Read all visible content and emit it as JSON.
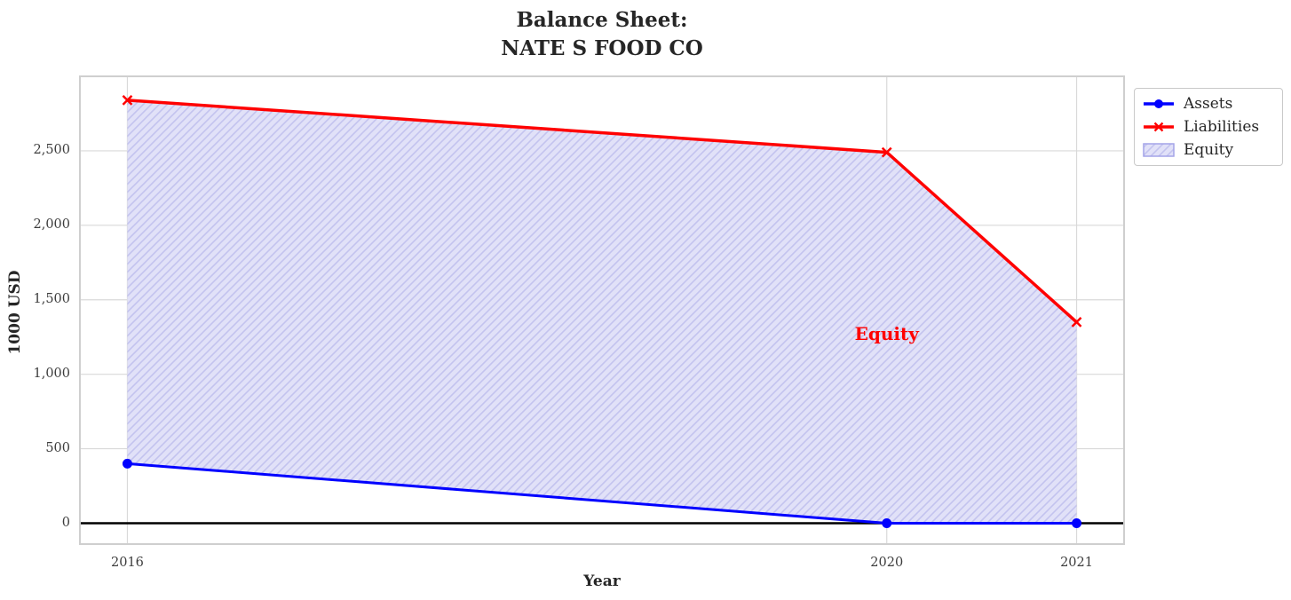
{
  "figure": {
    "title_line1": "Balance Sheet:",
    "title_line2": "NATE S FOOD CO"
  },
  "chart_data": {
    "type": "line",
    "title": "Balance Sheet:\nNATE S FOOD CO",
    "xlabel": "Year",
    "ylabel": "1000 USD",
    "x": [
      2016,
      2020,
      2021
    ],
    "xticks": [
      2016,
      2020,
      2021
    ],
    "xtick_labels": [
      "2016",
      "2020",
      "2021"
    ],
    "yticks": [
      0,
      500,
      1000,
      1500,
      2000,
      2500
    ],
    "ytick_labels": [
      "0",
      "500",
      "1,000",
      "1,500",
      "2,000",
      "2,500"
    ],
    "xlim": [
      2015.75,
      2021.25
    ],
    "ylim": [
      -140,
      3000
    ],
    "grid": true,
    "legend_position": "outside-top-right",
    "series": [
      {
        "name": "Assets",
        "values": [
          400,
          0,
          0
        ],
        "color": "#0000ff",
        "marker": "circle",
        "line_width": 3
      },
      {
        "name": "Liabilities",
        "values": [
          2840,
          2490,
          1350
        ],
        "color": "#ff0000",
        "marker": "x",
        "line_width": 3.5
      }
    ],
    "equity_fill": {
      "name": "Equity",
      "between": [
        "Assets",
        "Liabilities"
      ],
      "fill_color": "#e1e1f8",
      "hatch": "//",
      "hatch_color": "#c3c3ef",
      "edge_color": "#a4a4e8"
    },
    "annotation": {
      "text": "Equity",
      "x": 2020,
      "y": 1265,
      "color": "#ff0000"
    },
    "zero_line": {
      "color": "#000000",
      "width": 2.5
    },
    "colors": {
      "grid": "#d9d9d9",
      "axes_border": "#cfcfcf",
      "background": "#ffffff"
    }
  }
}
